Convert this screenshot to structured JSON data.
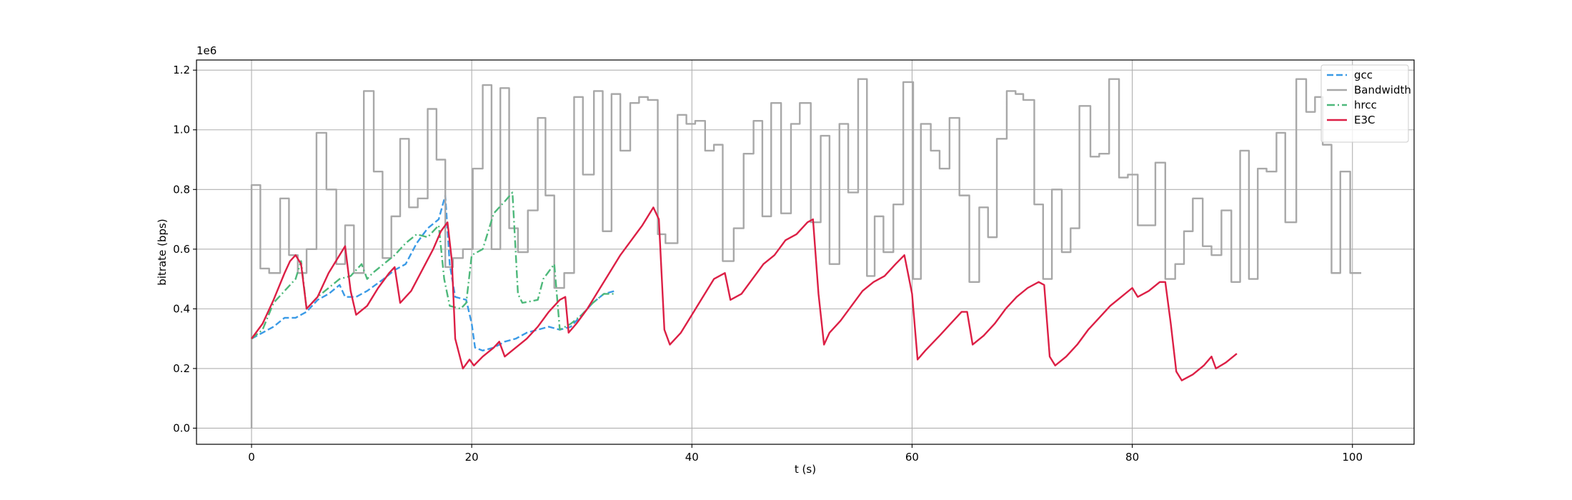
{
  "chart_data": {
    "type": "line",
    "xlabel": "t (s)",
    "ylabel": "bitrate (bps)",
    "y_offset_label": "1e6",
    "xlim": [
      -5,
      105.6
    ],
    "ylim": [
      -54000,
      1234000
    ],
    "xticks": [
      0,
      20,
      40,
      60,
      80,
      100
    ],
    "yticks": [
      {
        "value": 0,
        "label": "0.0"
      },
      {
        "value": 200000,
        "label": "0.2"
      },
      {
        "value": 400000,
        "label": "0.4"
      },
      {
        "value": 600000,
        "label": "0.6"
      },
      {
        "value": 800000,
        "label": "0.8"
      },
      {
        "value": 1000000,
        "label": "1.0"
      },
      {
        "value": 1200000,
        "label": "1.2"
      }
    ],
    "grid": true,
    "legend": "upper right",
    "series": [
      {
        "name": "gcc",
        "color": "#3a9ae6",
        "linestyle": "dashed",
        "x": [
          0,
          1,
          2,
          3,
          4,
          5,
          6,
          7,
          8,
          8.5,
          9.5,
          10.5,
          12,
          13,
          14,
          15,
          16,
          17,
          17.6,
          18,
          18.5,
          19.5,
          20,
          20.3,
          21,
          22,
          23,
          24,
          25,
          26,
          27,
          28,
          29,
          30,
          31,
          32,
          33
        ],
        "values": [
          300000,
          320000,
          340000,
          370000,
          370000,
          390000,
          430000,
          450000,
          480000,
          440000,
          440000,
          460000,
          500000,
          530000,
          550000,
          620000,
          670000,
          700000,
          780000,
          550000,
          440000,
          430000,
          350000,
          270000,
          260000,
          270000,
          290000,
          300000,
          320000,
          330000,
          340000,
          330000,
          340000,
          380000,
          420000,
          450000,
          460000
        ]
      },
      {
        "name": "Bandwidth",
        "color": "#a8a8a8",
        "linestyle": "solid",
        "drawstyle": "steps-post",
        "x": [
          0,
          0,
          0.8,
          1.6,
          2.6,
          3.4,
          4.2,
          5.0,
          5.9,
          6.8,
          7.7,
          8.5,
          9.3,
          10.2,
          11.1,
          11.9,
          12.7,
          13.5,
          14.3,
          15.1,
          16.0,
          16.8,
          17.6,
          18.3,
          19.2,
          20.1,
          21.0,
          21.8,
          22.6,
          23.4,
          24.2,
          25.1,
          26.0,
          26.7,
          27.5,
          28.4,
          29.3,
          30.1,
          31.1,
          31.9,
          32.7,
          33.5,
          34.4,
          35.2,
          36.0,
          36.9,
          37.6,
          38.7,
          39.5,
          40.3,
          41.2,
          42.0,
          42.8,
          43.8,
          44.7,
          45.6,
          46.4,
          47.2,
          48.1,
          49.0,
          49.8,
          50.8,
          51.7,
          52.5,
          53.4,
          54.2,
          55.1,
          55.9,
          56.6,
          57.4,
          58.3,
          59.2,
          60.1,
          60.8,
          61.7,
          62.5,
          63.4,
          64.3,
          65.2,
          66.1,
          66.9,
          67.7,
          68.6,
          69.4,
          70.1,
          71.1,
          71.9,
          72.7,
          73.6,
          74.4,
          75.2,
          76.2,
          77.0,
          77.9,
          78.8,
          79.6,
          80.5,
          82.1,
          83.0,
          83.9,
          84.7,
          85.5,
          86.4,
          87.2,
          88.1,
          89.0,
          89.8,
          90.6,
          91.4,
          92.2,
          93.1,
          93.9,
          94.9,
          95.8,
          96.6,
          97.3,
          98.1,
          98.9,
          99.8,
          100.8
        ],
        "values": [
          0,
          815000,
          535000,
          520000,
          770000,
          580000,
          520000,
          600000,
          990000,
          800000,
          550000,
          680000,
          520000,
          1130000,
          860000,
          570000,
          710000,
          970000,
          740000,
          770000,
          1070000,
          900000,
          540000,
          570000,
          600000,
          870000,
          1150000,
          600000,
          1140000,
          670000,
          590000,
          730000,
          1040000,
          780000,
          470000,
          520000,
          1110000,
          850000,
          1130000,
          660000,
          1120000,
          930000,
          1090000,
          1110000,
          1100000,
          650000,
          620000,
          1050000,
          1020000,
          1030000,
          930000,
          950000,
          560000,
          670000,
          920000,
          1030000,
          710000,
          1090000,
          720000,
          1020000,
          1090000,
          690000,
          980000,
          550000,
          1020000,
          790000,
          1170000,
          510000,
          710000,
          590000,
          750000,
          1160000,
          500000,
          1020000,
          930000,
          870000,
          1040000,
          780000,
          490000,
          740000,
          640000,
          970000,
          1130000,
          1120000,
          1100000,
          750000,
          500000,
          800000,
          590000,
          670000,
          1080000,
          910000,
          920000,
          1170000,
          840000,
          850000,
          680000,
          890000,
          500000,
          550000,
          660000,
          770000,
          610000,
          580000,
          730000,
          490000,
          930000,
          500000,
          870000,
          860000,
          990000,
          690000,
          1170000,
          1060000,
          1110000,
          950000,
          520000,
          860000,
          520000,
          520000
        ]
      },
      {
        "name": "hrcc",
        "color": "#4db87a",
        "linestyle": "dashdot",
        "x": [
          0,
          1,
          2,
          3,
          4,
          4.5,
          5,
          6,
          7,
          8,
          9,
          9.5,
          10,
          10.5,
          11,
          12,
          13,
          14,
          15,
          16,
          17,
          17.5,
          18,
          19,
          19.5,
          20,
          21,
          22,
          23,
          23.7,
          24.2,
          24.6,
          26,
          26.5,
          27.5,
          28,
          29,
          30,
          31,
          32,
          33
        ],
        "values": [
          300000,
          330000,
          420000,
          460000,
          500000,
          560000,
          400000,
          440000,
          470000,
          500000,
          510000,
          530000,
          550000,
          500000,
          520000,
          550000,
          580000,
          620000,
          650000,
          640000,
          680000,
          500000,
          410000,
          400000,
          420000,
          580000,
          600000,
          720000,
          760000,
          790000,
          450000,
          420000,
          430000,
          500000,
          550000,
          330000,
          350000,
          380000,
          420000,
          450000,
          450000
        ]
      },
      {
        "name": "E3C",
        "color": "#dc1f45",
        "linestyle": "solid",
        "x": [
          0,
          1,
          2,
          3,
          3.5,
          4,
          4.5,
          5,
          6,
          7,
          8,
          8.5,
          9,
          9.5,
          10.5,
          11.5,
          12.5,
          13,
          13.5,
          14.5,
          15.5,
          16.5,
          17.2,
          17.8,
          18.2,
          18.5,
          19.2,
          19.8,
          20.2,
          21,
          22,
          22.5,
          23,
          24,
          25,
          26,
          27,
          28,
          28.5,
          28.8,
          29.5,
          30.5,
          31.5,
          32.5,
          33.5,
          34.5,
          35.5,
          36.5,
          37,
          37.5,
          38,
          39,
          40,
          41,
          42,
          43,
          43.5,
          44.5,
          45.5,
          46.5,
          47.5,
          48.5,
          49.5,
          50.5,
          51,
          51.5,
          52,
          52.5,
          53.5,
          54.5,
          55.5,
          56.5,
          57.5,
          58.5,
          59.3,
          60,
          60.5,
          61.2,
          62.5,
          63.5,
          64.5,
          65,
          65.5,
          66.5,
          67.5,
          68.5,
          69.5,
          70.5,
          71.5,
          72,
          72.5,
          73,
          74,
          75,
          76,
          77,
          78,
          79,
          80,
          80.5,
          81.5,
          82.5,
          83,
          83.5,
          84,
          84.5,
          85.5,
          86.5,
          87.2,
          87.6,
          88.5,
          89.5
        ],
        "values": [
          300000,
          350000,
          430000,
          520000,
          560000,
          580000,
          550000,
          400000,
          440000,
          520000,
          580000,
          610000,
          460000,
          380000,
          410000,
          470000,
          520000,
          540000,
          420000,
          460000,
          530000,
          600000,
          660000,
          690000,
          560000,
          300000,
          200000,
          230000,
          210000,
          240000,
          270000,
          290000,
          240000,
          270000,
          300000,
          340000,
          390000,
          430000,
          440000,
          320000,
          350000,
          400000,
          460000,
          520000,
          580000,
          630000,
          680000,
          740000,
          700000,
          330000,
          280000,
          320000,
          380000,
          440000,
          500000,
          520000,
          430000,
          450000,
          500000,
          550000,
          580000,
          630000,
          650000,
          690000,
          700000,
          450000,
          280000,
          320000,
          360000,
          410000,
          460000,
          490000,
          510000,
          550000,
          580000,
          450000,
          230000,
          260000,
          310000,
          350000,
          390000,
          390000,
          280000,
          310000,
          350000,
          400000,
          440000,
          470000,
          490000,
          480000,
          240000,
          210000,
          240000,
          280000,
          330000,
          370000,
          410000,
          440000,
          470000,
          440000,
          460000,
          490000,
          490000,
          350000,
          190000,
          160000,
          180000,
          210000,
          240000,
          200000,
          220000,
          250000
        ]
      }
    ]
  }
}
